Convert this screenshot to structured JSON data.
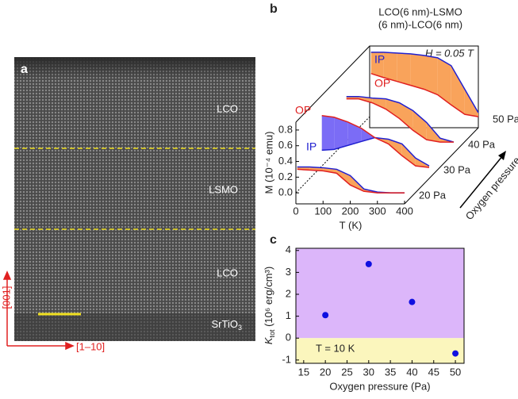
{
  "panel_a": {
    "label": "a",
    "layers": [
      "LCO",
      "LSMO",
      "LCO"
    ],
    "substrate": "SrTiO",
    "substrate_sub": "3",
    "axis_vertical": "[001]",
    "axis_horizontal": "[1–10]"
  },
  "chart_data": [
    {
      "type": "stacked_line",
      "panel_label": "b",
      "title": [
        "LCO(6 nm)-LSMO",
        "(6 nm)-LCO(6 nm)"
      ],
      "annotation": "H = 0.05 T",
      "xlabel": "T (K)",
      "ylabel": "M (10⁻⁴ emu)",
      "depth_label": "Oxygen pressure",
      "x": [
        5,
        50,
        100,
        150,
        200,
        250,
        300,
        350,
        400
      ],
      "xlim": [
        0,
        400
      ],
      "xticks": [
        0,
        100,
        200,
        300,
        400
      ],
      "ylim": [
        -0.14,
        0.9
      ],
      "yticks": [
        {
          "value": 0,
          "label": "0.0"
        },
        0.2,
        0.4,
        0.6,
        0.8
      ],
      "layers": [
        {
          "name": "20 Pa",
          "series": [
            {
              "name": "IP",
              "color": "#2020d0",
              "values": [
                0.33,
                0.33,
                0.32,
                0.3,
                0.22,
                0.05,
                0.01,
                0.0,
                0.0
              ]
            },
            {
              "name": "OP",
              "color": "#e02020",
              "values": [
                0.3,
                0.29,
                0.28,
                0.25,
                0.1,
                0.02,
                0.0,
                0.0,
                0.0
              ]
            }
          ]
        },
        {
          "name": "30 Pa",
          "series": [
            {
              "name": "IP",
              "color": "#2020d0",
              "values": [
                0.22,
                0.23,
                0.28,
                0.33,
                0.38,
                0.36,
                0.3,
                0.12,
                0.02
              ]
            },
            {
              "name": "OP",
              "color": "#e02020",
              "values": [
                0.66,
                0.64,
                0.58,
                0.5,
                0.38,
                0.3,
                0.15,
                0.02,
                0.0
              ]
            }
          ]
        },
        {
          "name": "40 Pa",
          "series": [
            {
              "name": "IP",
              "color": "#2020d0",
              "values": [
                0.58,
                0.58,
                0.56,
                0.55,
                0.5,
                0.4,
                0.25,
                0.05,
                0.0
              ]
            },
            {
              "name": "OP",
              "color": "#e02020",
              "values": [
                0.55,
                0.55,
                0.5,
                0.42,
                0.3,
                0.15,
                0.03,
                0.0,
                0.0
              ]
            }
          ]
        },
        {
          "name": "50 Pa",
          "series": [
            {
              "name": "IP",
              "color": "#2020d0",
              "values": [
                0.82,
                0.82,
                0.81,
                0.8,
                0.78,
                0.75,
                0.65,
                0.35,
                0.05
              ]
            },
            {
              "name": "OP",
              "color": "#e02020",
              "values": [
                0.55,
                0.5,
                0.45,
                0.4,
                0.35,
                0.28,
                0.15,
                0.03,
                0.0
              ]
            }
          ]
        }
      ]
    },
    {
      "type": "scatter",
      "panel_label": "c",
      "annotation": "T = 10 K",
      "xlabel": "Oxygen pressure (Pa)",
      "ylabel_symbol": "K",
      "ylabel_sub": "tot",
      "ylabel_rest": " (10⁶ erg/cm³)",
      "x": [
        20,
        30,
        40,
        50
      ],
      "values": [
        1.05,
        3.38,
        1.65,
        -0.7
      ],
      "color": "#1010e0",
      "xlim": [
        13.2,
        52
      ],
      "xticks": [
        15,
        20,
        25,
        30,
        35,
        40,
        45,
        50
      ],
      "ylim": [
        -1.15,
        4.1
      ],
      "yticks": [
        -1,
        0,
        1,
        2,
        3,
        4
      ]
    }
  ]
}
